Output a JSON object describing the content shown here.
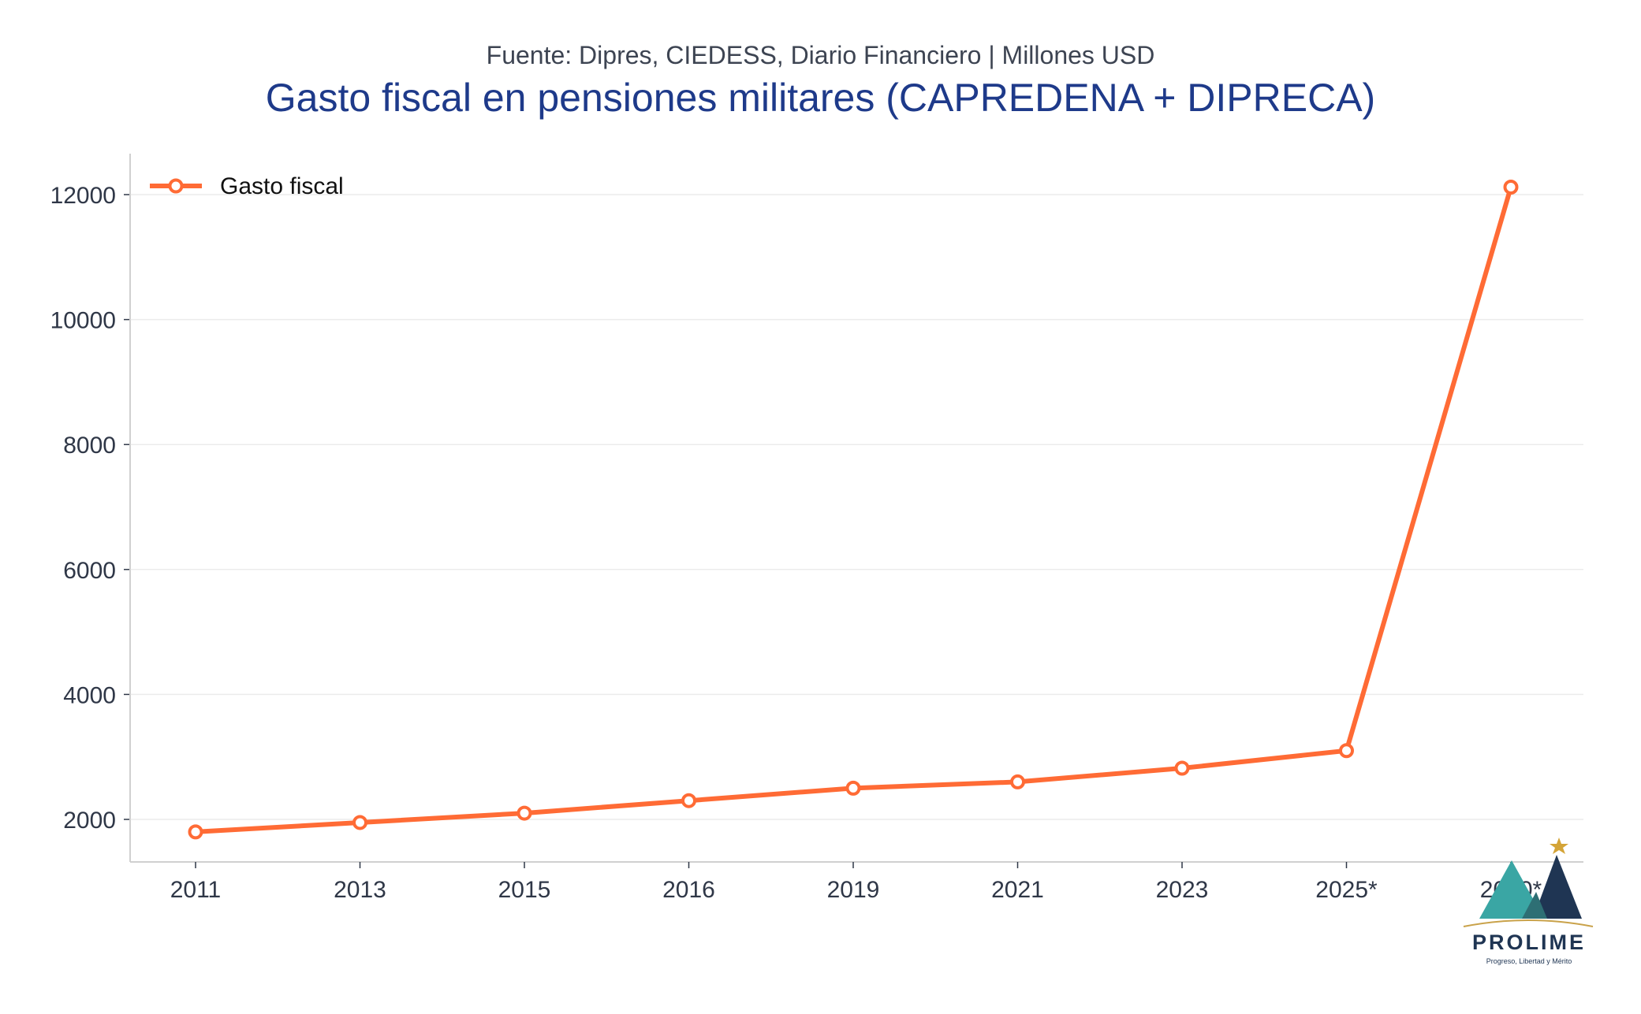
{
  "chart_data": {
    "type": "line",
    "subtitle": "Fuente: Dipres, CIEDESS, Diario Financiero | Millones USD",
    "title": "Gasto fiscal en pensiones militares (CAPREDENA + DIPRECA)",
    "xlabel": "",
    "ylabel": "",
    "categories": [
      "2011",
      "2013",
      "2015",
      "2016",
      "2019",
      "2021",
      "2023",
      "2025*",
      "2030*"
    ],
    "series": [
      {
        "name": "Gasto fiscal",
        "values": [
          1800,
          1950,
          2100,
          2300,
          2500,
          2600,
          2820,
          3100,
          12120
        ]
      }
    ],
    "y_ticks": [
      2000,
      4000,
      6000,
      8000,
      10000,
      12000
    ],
    "ylim": [
      1300,
      12700
    ],
    "grid": true,
    "legend_position": "top-left",
    "colors": {
      "series": "#ff6b35",
      "grid": "#ececec",
      "axis": "#d0d0d0",
      "title": "#1e3a8a",
      "subtitle": "#3d4452"
    }
  },
  "logo": {
    "name": "PROLIME",
    "tagline": "Progreso, Libertad y Mérito"
  }
}
